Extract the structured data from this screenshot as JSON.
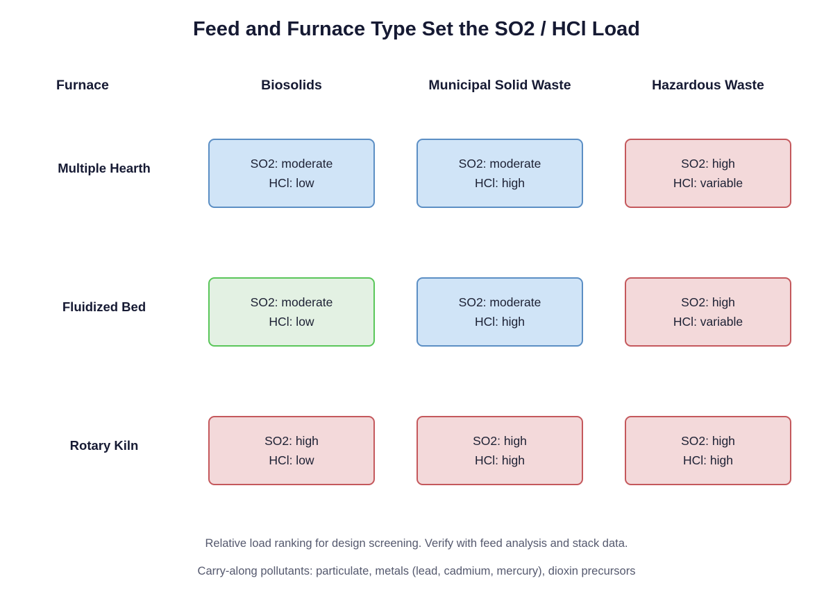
{
  "title": "Feed and Furnace Type Set the SO2 / HCl Load",
  "corner_header": "Furnace",
  "columns": [
    "Biosolids",
    "Municipal Solid Waste",
    "Hazardous Waste"
  ],
  "rows": [
    {
      "label": "Multiple Hearth",
      "cells": [
        {
          "so2": "SO2: moderate",
          "hcl": "HCl: low",
          "color": "#d0e4f7"
        },
        {
          "so2": "SO2: moderate",
          "hcl": "HCl: high",
          "color": "#d0e4f7"
        },
        {
          "so2": "SO2: high",
          "hcl": "HCl: variable",
          "color": "#f3d9da"
        }
      ]
    },
    {
      "label": "Fluidized Bed",
      "cells": [
        {
          "so2": "SO2: moderate",
          "hcl": "HCl: low",
          "color": "#e3f1e3"
        },
        {
          "so2": "SO2: moderate",
          "hcl": "HCl: high",
          "color": "#d0e4f7"
        },
        {
          "so2": "SO2: high",
          "hcl": "HCl: variable",
          "color": "#f3d9da"
        }
      ]
    },
    {
      "label": "Rotary Kiln",
      "cells": [
        {
          "so2": "SO2: high",
          "hcl": "HCl: low",
          "color": "#f3d9da"
        },
        {
          "so2": "SO2: high",
          "hcl": "HCl: high",
          "color": "#f3d9da"
        },
        {
          "so2": "SO2: high",
          "hcl": "HCl: high",
          "color": "#f3d9da"
        }
      ]
    }
  ],
  "footnotes": [
    "Relative load ranking for design screening. Verify with feed analysis and stack data.",
    "Carry-along pollutants: particulate, metals (lead, cadmium, mercury), dioxin precursors"
  ]
}
